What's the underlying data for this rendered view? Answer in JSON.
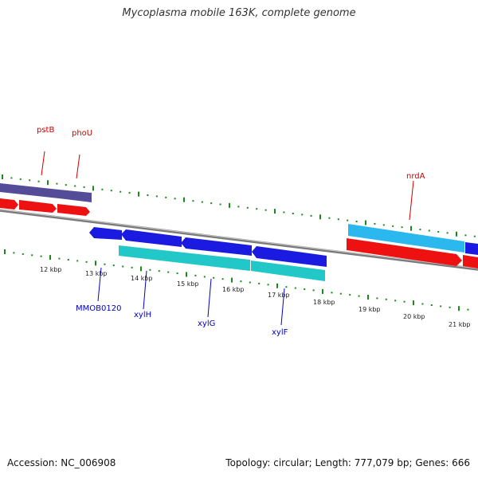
{
  "title": "Mycoplasma mobile 163K, complete genome",
  "footer": {
    "accession": "Accession: NC_006908",
    "stats": "Topology: circular; Length: 777,079 bp; Genes: 666"
  },
  "colors": {
    "forward_gene_red": "#ee1111",
    "forward_gene_purple": "#554c99",
    "forward_gene_cyan": "#2bb8ee",
    "reverse_gene_blue": "#1a1ae0",
    "reverse_gene_teal": "#22c8c8",
    "backbone_gray": "#888888",
    "tick_green": "#1a8a1a",
    "upper_label_red": "#cc0000",
    "lower_label_blue": "#0000cc"
  },
  "upper_labels": [
    "pstB",
    "phoU",
    "nrdA"
  ],
  "lower_labels": [
    "MMOB0120",
    "xylH",
    "xylG",
    "xylF"
  ],
  "kbp_ticks": [
    "12 kbp",
    "13 kbp",
    "14 kbp",
    "15 kbp",
    "16 kbp",
    "17 kbp",
    "18 kbp",
    "19 kbp",
    "20 kbp",
    "21 kbp"
  ]
}
